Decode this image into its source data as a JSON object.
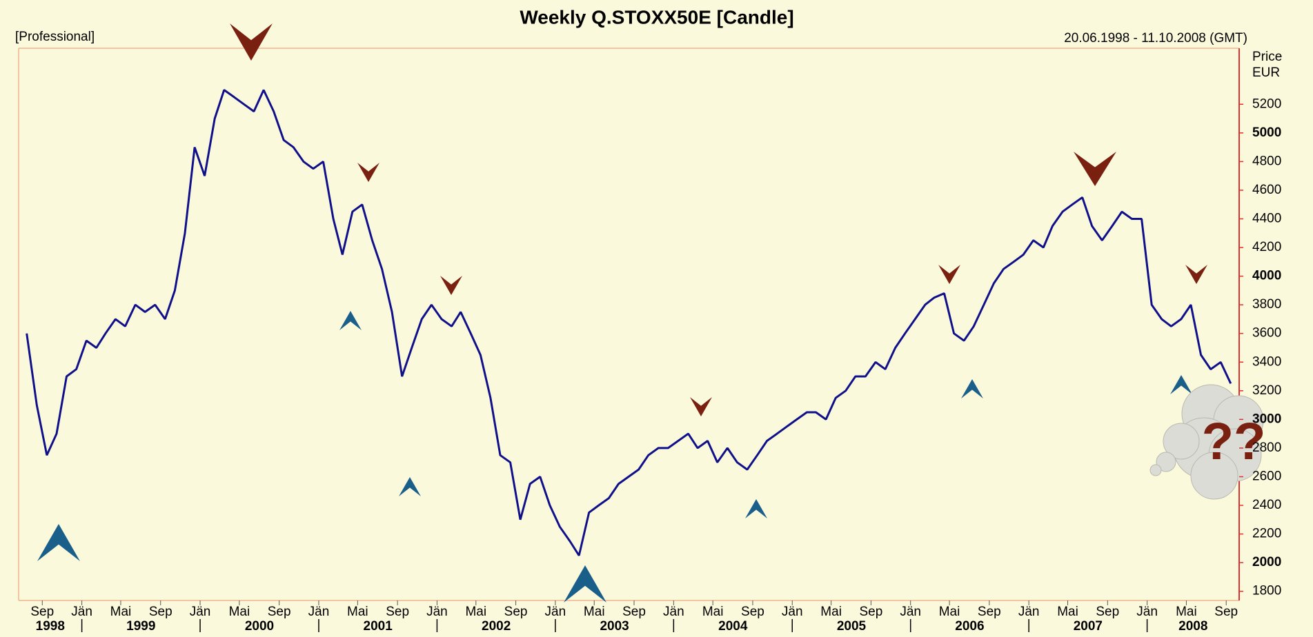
{
  "chart_data": {
    "type": "line",
    "title": "Weekly Q.STOXX50E [Candle]",
    "subtitle_left": "[Professional]",
    "subtitle_right": "20.06.1998 - 11.10.2008 (GMT)",
    "ylabel": [
      "Price",
      "EUR"
    ],
    "annotation": "??",
    "xlim": [
      "1998-06-20",
      "2008-10-11"
    ],
    "ylim": [
      1736,
      5591
    ],
    "yticks": [
      1800,
      2000,
      2200,
      2400,
      2600,
      2800,
      3000,
      3200,
      3400,
      3600,
      3800,
      4000,
      4200,
      4400,
      4600,
      4800,
      5000,
      5200
    ],
    "bold_yticks": [
      2000,
      3000,
      4000,
      5000
    ],
    "xticks": [
      {
        "value": "1998-09",
        "label": "Sep"
      },
      {
        "value": "1999-01",
        "label": "Jän"
      },
      {
        "value": "1999-05",
        "label": "Mai"
      },
      {
        "value": "1999-09",
        "label": "Sep"
      },
      {
        "value": "2000-01",
        "label": "Jän"
      },
      {
        "value": "2000-05",
        "label": "Mai"
      },
      {
        "value": "2000-09",
        "label": "Sep"
      },
      {
        "value": "2001-01",
        "label": "Jän"
      },
      {
        "value": "2001-05",
        "label": "Mai"
      },
      {
        "value": "2001-09",
        "label": "Sep"
      },
      {
        "value": "2002-01",
        "label": "Jän"
      },
      {
        "value": "2002-05",
        "label": "Mai"
      },
      {
        "value": "2002-09",
        "label": "Sep"
      },
      {
        "value": "2003-01",
        "label": "Jän"
      },
      {
        "value": "2003-05",
        "label": "Mai"
      },
      {
        "value": "2003-09",
        "label": "Sep"
      },
      {
        "value": "2004-01",
        "label": "Jän"
      },
      {
        "value": "2004-05",
        "label": "Mai"
      },
      {
        "value": "2004-09",
        "label": "Sep"
      },
      {
        "value": "2005-01",
        "label": "Jän"
      },
      {
        "value": "2005-05",
        "label": "Mai"
      },
      {
        "value": "2005-09",
        "label": "Sep"
      },
      {
        "value": "2006-01",
        "label": "Jän"
      },
      {
        "value": "2006-05",
        "label": "Mai"
      },
      {
        "value": "2006-09",
        "label": "Sep"
      },
      {
        "value": "2007-01",
        "label": "Jän"
      },
      {
        "value": "2007-05",
        "label": "Mai"
      },
      {
        "value": "2007-09",
        "label": "Sep"
      },
      {
        "value": "2008-01",
        "label": "Jän"
      },
      {
        "value": "2008-05",
        "label": "Mai"
      },
      {
        "value": "2008-09",
        "label": "Sep"
      }
    ],
    "years": [
      1998,
      1999,
      2000,
      2001,
      2002,
      2003,
      2004,
      2005,
      2006,
      2007,
      2008
    ],
    "x": [
      "1998-07",
      "1998-08",
      "1998-09",
      "1998-10",
      "1998-11",
      "1998-12",
      "1999-01",
      "1999-02",
      "1999-03",
      "1999-04",
      "1999-05",
      "1999-06",
      "1999-07",
      "1999-08",
      "1999-09",
      "1999-10",
      "1999-11",
      "1999-12",
      "2000-01",
      "2000-02",
      "2000-03",
      "2000-04",
      "2000-05",
      "2000-06",
      "2000-07",
      "2000-08",
      "2000-09",
      "2000-10",
      "2000-11",
      "2000-12",
      "2001-01",
      "2001-02",
      "2001-03",
      "2001-04",
      "2001-05",
      "2001-06",
      "2001-07",
      "2001-08",
      "2001-09",
      "2001-10",
      "2001-11",
      "2001-12",
      "2002-01",
      "2002-02",
      "2002-03",
      "2002-04",
      "2002-05",
      "2002-06",
      "2002-07",
      "2002-08",
      "2002-09",
      "2002-10",
      "2002-11",
      "2002-12",
      "2003-01",
      "2003-02",
      "2003-03",
      "2003-04",
      "2003-05",
      "2003-06",
      "2003-07",
      "2003-08",
      "2003-09",
      "2003-10",
      "2003-11",
      "2003-12",
      "2004-01",
      "2004-02",
      "2004-03",
      "2004-04",
      "2004-05",
      "2004-06",
      "2004-07",
      "2004-08",
      "2004-09",
      "2004-10",
      "2004-11",
      "2004-12",
      "2005-01",
      "2005-02",
      "2005-03",
      "2005-04",
      "2005-05",
      "2005-06",
      "2005-07",
      "2005-08",
      "2005-09",
      "2005-10",
      "2005-11",
      "2005-12",
      "2006-01",
      "2006-02",
      "2006-03",
      "2006-04",
      "2006-05",
      "2006-06",
      "2006-07",
      "2006-08",
      "2006-09",
      "2006-10",
      "2006-11",
      "2006-12",
      "2007-01",
      "2007-02",
      "2007-03",
      "2007-04",
      "2007-05",
      "2007-06",
      "2007-07",
      "2007-08",
      "2007-09",
      "2007-10",
      "2007-11",
      "2007-12",
      "2008-01",
      "2008-02",
      "2008-03",
      "2008-04",
      "2008-05",
      "2008-06",
      "2008-07",
      "2008-08",
      "2008-09"
    ],
    "series": [
      {
        "name": "Q.STOXX50E",
        "color": "#10108a",
        "values": [
          3600,
          3100,
          2750,
          2900,
          3300,
          3350,
          3550,
          3500,
          3600,
          3700,
          3650,
          3800,
          3750,
          3800,
          3700,
          3900,
          4300,
          4900,
          4700,
          5100,
          5300,
          5250,
          5200,
          5150,
          5300,
          5150,
          4950,
          4900,
          4800,
          4750,
          4800,
          4400,
          4150,
          4450,
          4500,
          4250,
          4050,
          3750,
          3300,
          3500,
          3700,
          3800,
          3700,
          3650,
          3750,
          3600,
          3450,
          3150,
          2750,
          2700,
          2300,
          2550,
          2600,
          2400,
          2250,
          2150,
          2050,
          2350,
          2400,
          2450,
          2550,
          2600,
          2650,
          2750,
          2800,
          2800,
          2850,
          2900,
          2800,
          2850,
          2700,
          2800,
          2700,
          2650,
          2750,
          2850,
          2900,
          2950,
          3000,
          3050,
          3050,
          3000,
          3150,
          3200,
          3300,
          3300,
          3400,
          3350,
          3500,
          3600,
          3700,
          3800,
          3850,
          3880,
          3600,
          3550,
          3650,
          3800,
          3950,
          4050,
          4100,
          4150,
          4250,
          4200,
          4350,
          4450,
          4500,
          4550,
          4350,
          4250,
          4350,
          4450,
          4400,
          4400,
          3800,
          3700,
          3650,
          3700,
          3800,
          3450,
          3350,
          3400,
          3250
        ]
      }
    ]
  }
}
